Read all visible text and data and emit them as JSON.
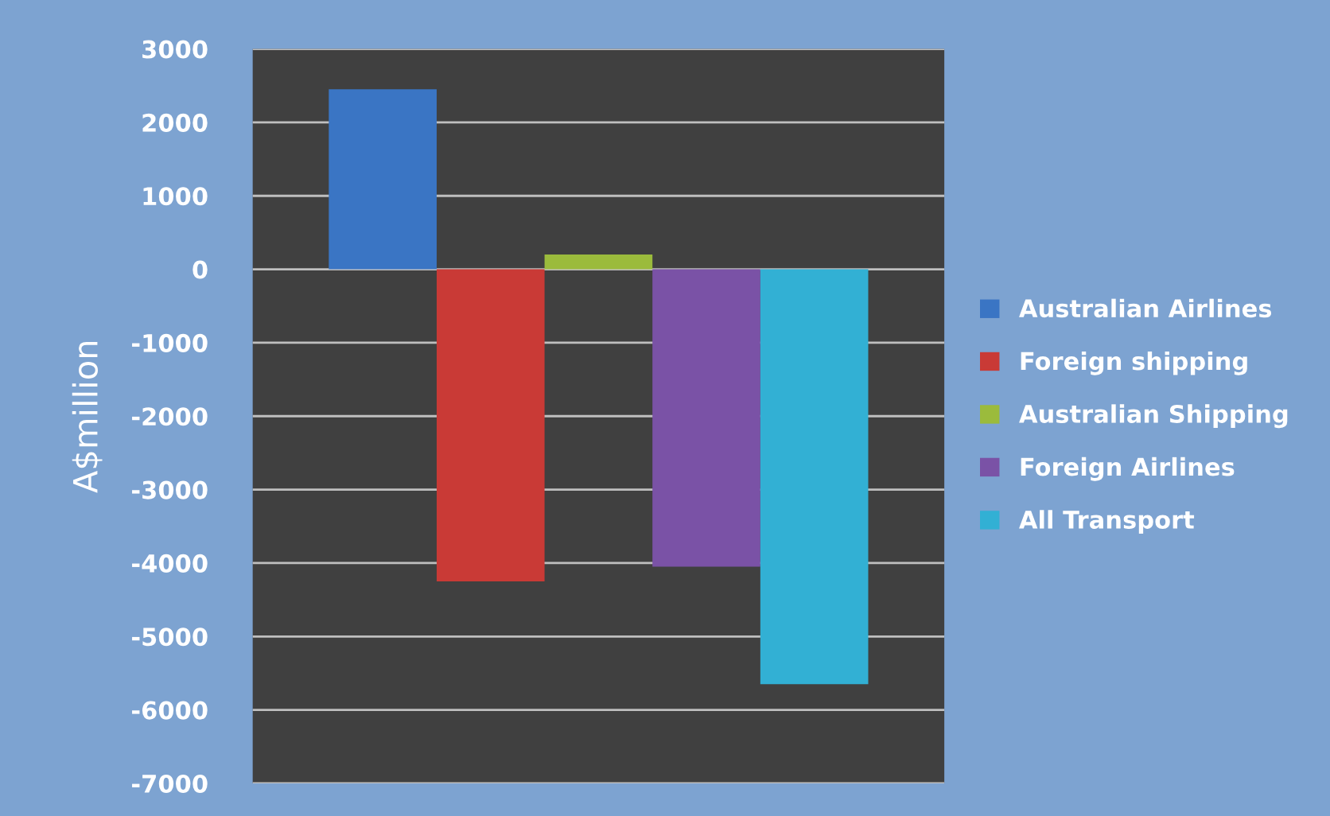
{
  "chart_data": {
    "type": "bar",
    "ylabel": "A$million",
    "categories": [
      null
    ],
    "series": [
      {
        "name": "Australian Airlines",
        "color": "#3a75c4",
        "values": [
          2450
        ]
      },
      {
        "name": "Foreign shipping",
        "color": "#c93a36",
        "values": [
          -4250
        ]
      },
      {
        "name": "Australian Shipping",
        "color": "#9bbb3c",
        "values": [
          200
        ]
      },
      {
        "name": "Foreign Airlines",
        "color": "#7a52a6",
        "values": [
          -4050
        ]
      },
      {
        "name": "All Transport",
        "color": "#32b0d4",
        "values": [
          -5650
        ]
      }
    ],
    "ylim": [
      -7000,
      3000
    ],
    "yticks": [
      -7000,
      -6000,
      -5000,
      -4000,
      -3000,
      -2000,
      -1000,
      0,
      1000,
      2000,
      3000
    ],
    "grid": "y",
    "legend": "right"
  }
}
